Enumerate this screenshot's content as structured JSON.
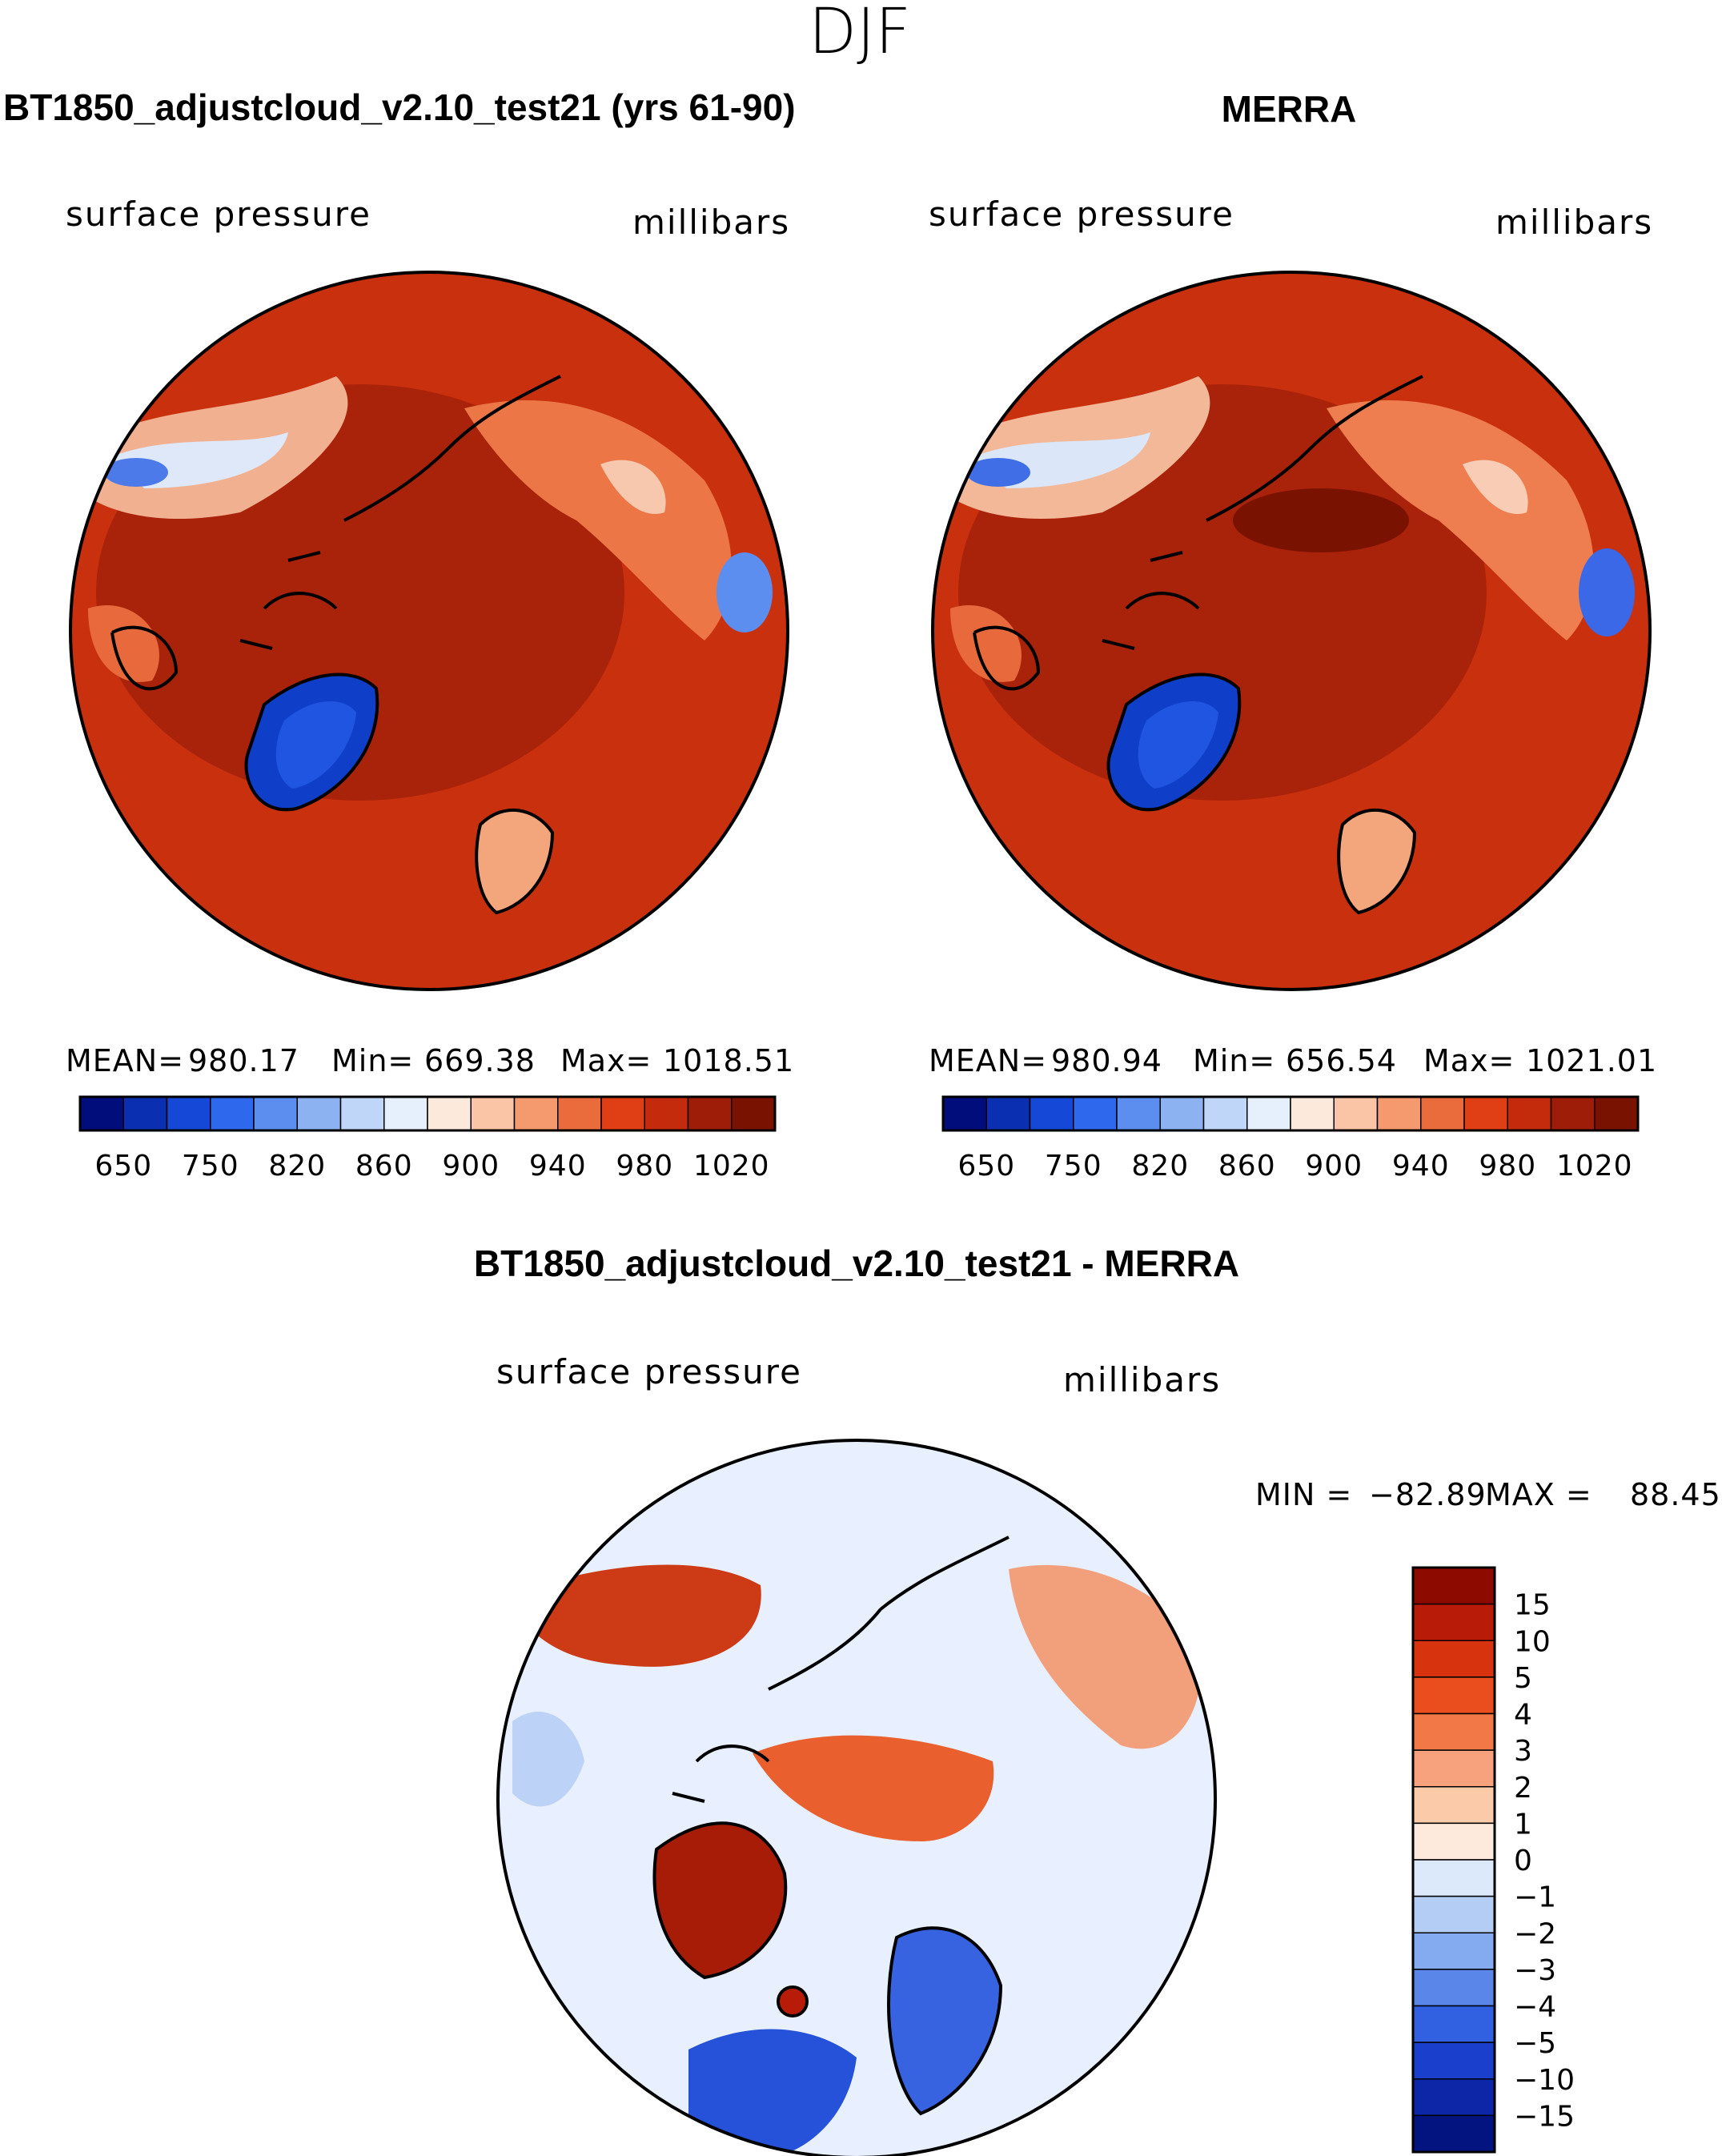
{
  "season_title": "DJF",
  "chart_data": [
    {
      "type": "polar-contour-map",
      "id": "model",
      "title": "BT1850_adjustcloud_v2.10_test21 (yrs 61-90)",
      "variable_label": "surface pressure",
      "units_label": "millibars",
      "stats": {
        "mean_label": "MEAN=",
        "mean": "980.17",
        "min_label": "Min=",
        "min": "669.38",
        "max_label": "Max=",
        "max": "1018.51"
      },
      "colorbar": {
        "orientation": "horizontal",
        "levels": [
          "650",
          "750",
          "820",
          "860",
          "900",
          "940",
          "980",
          "1020"
        ],
        "colors": [
          "#000d7a",
          "#0a2fb0",
          "#1548d6",
          "#2e68ec",
          "#5c8ef0",
          "#8cb2f2",
          "#bfd6f8",
          "#e6effc",
          "#fde9db",
          "#f9c5a6",
          "#f49a6e",
          "#ea6b3c",
          "#e03f15",
          "#c42a0c",
          "#9e1d08",
          "#7a1200"
        ]
      },
      "dominant_field_color": "#c42a0c"
    },
    {
      "type": "polar-contour-map",
      "id": "obs",
      "title": "MERRA",
      "variable_label": "surface pressure",
      "units_label": "millibars",
      "stats": {
        "mean_label": "MEAN=",
        "mean": "980.94",
        "min_label": "Min=",
        "min": "656.54",
        "max_label": "Max=",
        "max": "1021.01"
      },
      "colorbar": {
        "orientation": "horizontal",
        "levels": [
          "650",
          "750",
          "820",
          "860",
          "900",
          "940",
          "980",
          "1020"
        ],
        "colors": [
          "#000d7a",
          "#0a2fb0",
          "#1548d6",
          "#2e68ec",
          "#5c8ef0",
          "#8cb2f2",
          "#bfd6f8",
          "#e6effc",
          "#fde9db",
          "#f9c5a6",
          "#f49a6e",
          "#ea6b3c",
          "#e03f15",
          "#c42a0c",
          "#9e1d08",
          "#7a1200"
        ]
      },
      "dominant_field_color": "#c42a0c"
    },
    {
      "type": "polar-contour-map",
      "id": "diff",
      "title": "BT1850_adjustcloud_v2.10_test21 - MERRA",
      "variable_label": "surface pressure",
      "units_label": "millibars",
      "stats": {
        "min_label": "MIN =",
        "min": "−82.89",
        "max_label": "MAX =",
        "max": "88.45"
      },
      "colorbar": {
        "orientation": "vertical",
        "levels": [
          "15",
          "10",
          "5",
          "4",
          "3",
          "2",
          "1",
          "0",
          "−1",
          "−2",
          "−3",
          "−4",
          "−5",
          "−10",
          "−15"
        ],
        "colors": [
          "#8c0a00",
          "#b81c08",
          "#d8330f",
          "#ea4e1e",
          "#f27848",
          "#f7a27c",
          "#fbcaa9",
          "#fdeadc",
          "#dbe9fa",
          "#b3cdf4",
          "#84aaef",
          "#5a86ea",
          "#3160e0",
          "#1a3fcc",
          "#0d26a8",
          "#03137f"
        ]
      },
      "dominant_field_color": "#e8efff"
    }
  ]
}
